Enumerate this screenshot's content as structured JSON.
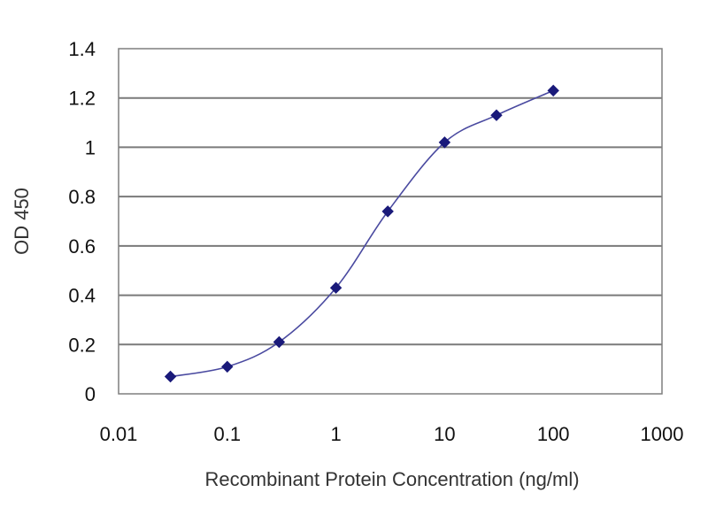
{
  "chart_data": {
    "type": "line",
    "title": "",
    "xlabel": "Recombinant Protein Concentration (ng/ml)",
    "ylabel": "OD 450",
    "x_scale": "log",
    "xlim": [
      0.01,
      1000
    ],
    "ylim": [
      0,
      1.4
    ],
    "x_ticks": [
      "0.01",
      "0.1",
      "1",
      "10",
      "100",
      "1000"
    ],
    "y_ticks": [
      "0",
      "0.2",
      "0.4",
      "0.6",
      "0.8",
      "1",
      "1.2",
      "1.4"
    ],
    "grid": "horizontal",
    "legend": "none",
    "series": [
      {
        "x": [
          0.03,
          0.1,
          0.3,
          1,
          3,
          10,
          30,
          100
        ],
        "y": [
          0.07,
          0.11,
          0.21,
          0.43,
          0.74,
          1.02,
          1.13,
          1.23
        ],
        "color": "#1a1a7a"
      }
    ]
  }
}
